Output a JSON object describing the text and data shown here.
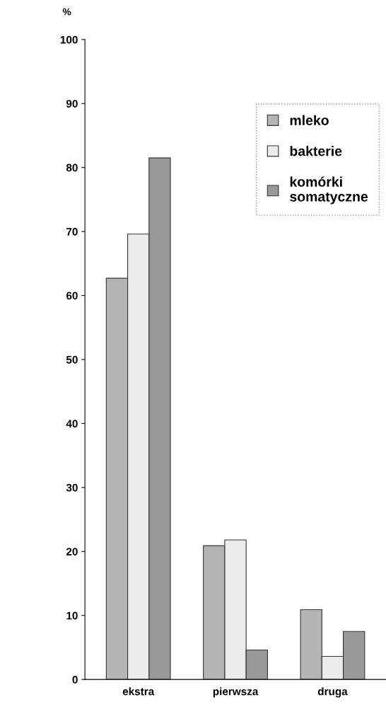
{
  "chart_data": {
    "type": "bar",
    "ylabel": "%",
    "categories": [
      "ekstra",
      "pierwsza",
      "druga"
    ],
    "series": [
      {
        "name": "mleko",
        "color": "#b4b4b4",
        "values": [
          62.7,
          20.9,
          10.9
        ]
      },
      {
        "name": "bakterie",
        "color": "#ececec",
        "values": [
          69.6,
          21.8,
          3.6
        ]
      },
      {
        "name": "komórki\nsomatyczne",
        "color": "#999999",
        "values": [
          81.5,
          4.6,
          7.5
        ]
      }
    ],
    "ylim": [
      0,
      100
    ],
    "yticks": [
      0,
      10,
      20,
      30,
      40,
      50,
      60,
      70,
      80,
      90,
      100
    ],
    "grid": false,
    "legend": "top right"
  }
}
